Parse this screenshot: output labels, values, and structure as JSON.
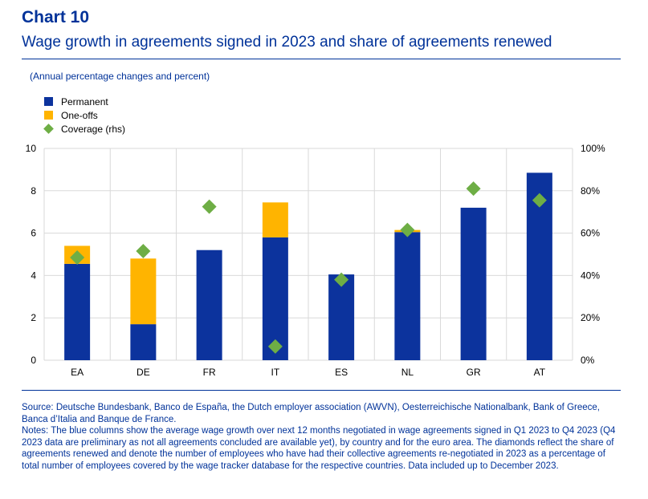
{
  "header": {
    "chart_number": "Chart 10",
    "title": "Wage growth in agreements signed in 2023 and share of agreements renewed",
    "units": "(Annual percentage changes and percent)"
  },
  "colors": {
    "brand": "#003299",
    "permanent": "#0C339D",
    "one_offs": "#FFB400",
    "coverage": "#6EAE45",
    "grid": "#d9d9d9"
  },
  "chart_data": {
    "type": "bar",
    "stacked": true,
    "categories": [
      "EA",
      "DE",
      "FR",
      "IT",
      "ES",
      "NL",
      "GR",
      "AT"
    ],
    "series": [
      {
        "name": "Permanent",
        "kind": "bar",
        "axis": "left",
        "values": [
          4.55,
          1.7,
          5.2,
          5.8,
          4.05,
          6.05,
          7.2,
          8.85
        ]
      },
      {
        "name": "One-offs",
        "kind": "bar",
        "axis": "left",
        "values": [
          0.85,
          3.1,
          0,
          1.65,
          0,
          0.1,
          0,
          0
        ]
      },
      {
        "name": "Coverage (rhs)",
        "kind": "diamond",
        "axis": "right",
        "values": [
          48.5,
          51.5,
          72.5,
          6.5,
          38,
          61.5,
          81,
          75.5
        ]
      }
    ],
    "y_left": {
      "min": 0,
      "max": 10,
      "ticks": [
        "0",
        "2",
        "4",
        "6",
        "8",
        "10"
      ]
    },
    "y_right": {
      "min": 0,
      "max": 100,
      "ticks": [
        "0%",
        "20%",
        "40%",
        "60%",
        "80%",
        "100%"
      ]
    },
    "grid": true,
    "legend_position": "top-left"
  },
  "footer": {
    "source": "Source: Deutsche Bundesbank, Banco de España, the Dutch employer association (AWVN), Oesterreichische Nationalbank, Bank of Greece, Banca d’Italia and Banque de France.",
    "notes": "Notes: The blue columns show the average wage growth over next 12 months negotiated in wage agreements signed in Q1 2023 to Q4 2023 (Q4 2023 data are preliminary as not all agreements concluded are available yet), by country and for the euro area. The diamonds reflect the share of agreements renewed and denote the number of employees who have had their collective agreements re-negotiated in 2023 as a percentage of total number of employees covered by the wage tracker database for the respective countries. Data included up to December 2023."
  }
}
